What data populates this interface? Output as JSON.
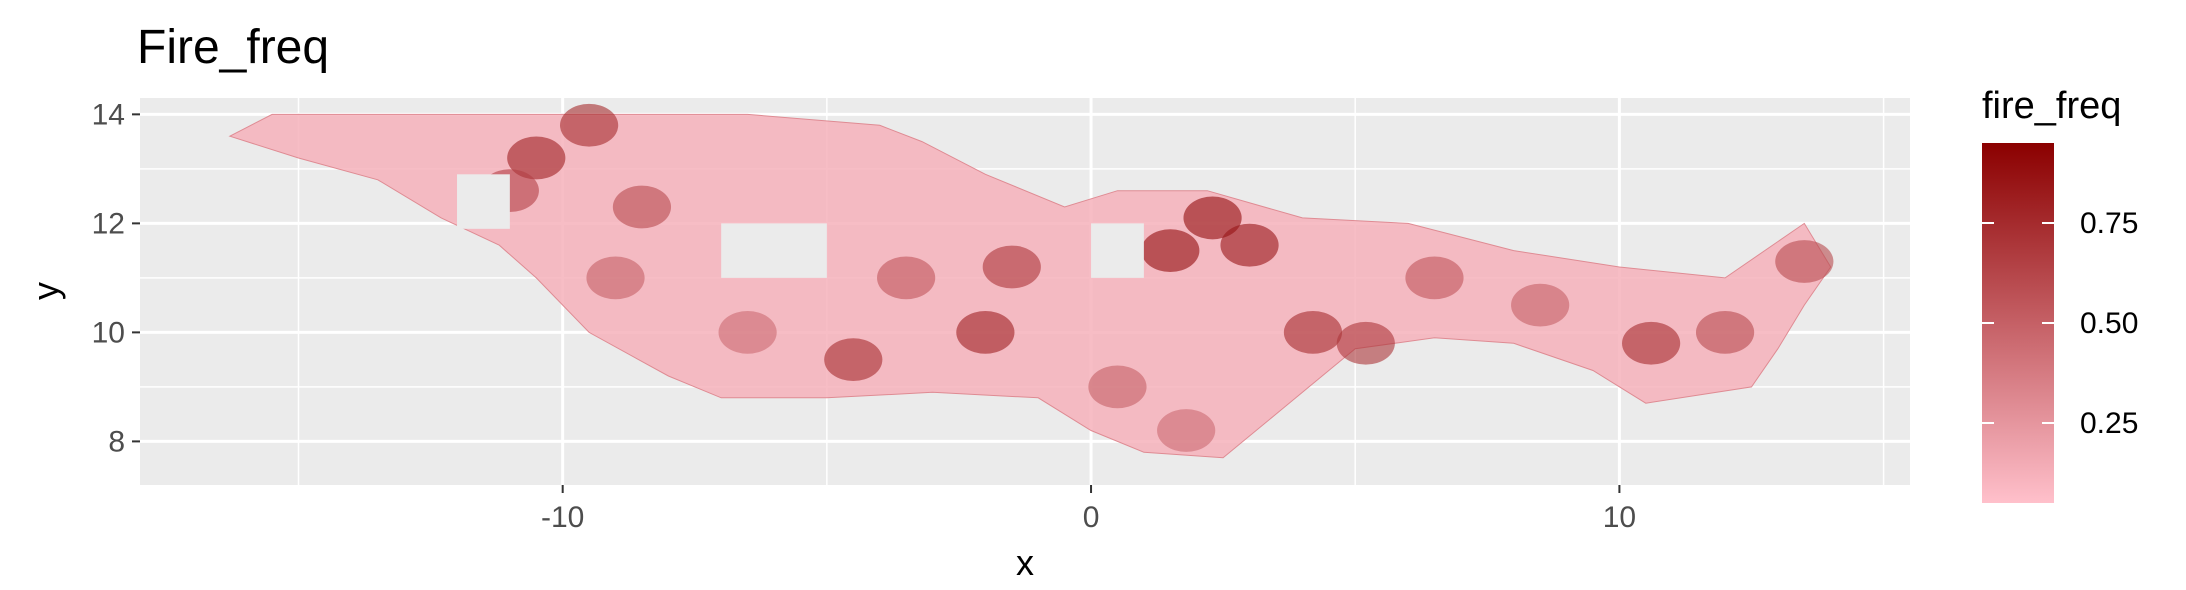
{
  "chart_data": {
    "type": "heatmap",
    "title": "Fire_freq",
    "xlabel": "x",
    "ylabel": "y",
    "xlim": [
      -18,
      15.5
    ],
    "ylim": [
      7.2,
      14.3
    ],
    "x_ticks": [
      -10,
      0,
      10
    ],
    "x_tick_labels": [
      "-10",
      "0",
      "10"
    ],
    "y_ticks": [
      8,
      10,
      12,
      14
    ],
    "y_tick_labels": [
      "8",
      "10",
      "12",
      "14"
    ],
    "grid": true,
    "panel_background": "#ebebeb",
    "legend": {
      "title": "fire_freq",
      "placement": "right",
      "range": [
        0.05,
        0.95
      ],
      "low_color": "#ffc0cb",
      "high_color": "#8b0000",
      "breaks": [
        0.25,
        0.5,
        0.75
      ],
      "break_labels": [
        "0.25",
        "0.50",
        "0.75"
      ]
    },
    "region_outline": [
      [
        -16.3,
        13.6
      ],
      [
        -15.5,
        14.0
      ],
      [
        -6.5,
        14.0
      ],
      [
        -4.0,
        13.8
      ],
      [
        -3.2,
        13.5
      ],
      [
        -2.0,
        12.9
      ],
      [
        -0.5,
        12.3
      ],
      [
        0.5,
        12.6
      ],
      [
        2.2,
        12.6
      ],
      [
        4.0,
        12.1
      ],
      [
        6.0,
        12.0
      ],
      [
        8.0,
        11.5
      ],
      [
        10.0,
        11.2
      ],
      [
        12.0,
        11.0
      ],
      [
        13.5,
        12.0
      ],
      [
        14.0,
        11.2
      ],
      [
        13.5,
        10.5
      ],
      [
        13.0,
        9.7
      ],
      [
        12.5,
        9.0
      ],
      [
        10.5,
        8.7
      ],
      [
        9.5,
        9.3
      ],
      [
        8.0,
        9.8
      ],
      [
        6.5,
        9.9
      ],
      [
        5.0,
        9.7
      ],
      [
        4.5,
        9.3
      ],
      [
        3.5,
        8.5
      ],
      [
        2.5,
        7.7
      ],
      [
        1.0,
        7.8
      ],
      [
        0.0,
        8.2
      ],
      [
        -1.0,
        8.8
      ],
      [
        -3.0,
        8.9
      ],
      [
        -5.0,
        8.8
      ],
      [
        -7.0,
        8.8
      ],
      [
        -8.0,
        9.2
      ],
      [
        -9.5,
        10.0
      ],
      [
        -10.5,
        11.0
      ],
      [
        -11.2,
        11.6
      ],
      [
        -12.3,
        12.1
      ],
      [
        -13.5,
        12.8
      ],
      [
        -15.0,
        13.2
      ]
    ],
    "hot_spots": [
      {
        "x": -10.5,
        "y": 13.2,
        "value": 0.8
      },
      {
        "x": -9.5,
        "y": 13.8,
        "value": 0.75
      },
      {
        "x": -11.0,
        "y": 12.6,
        "value": 0.65
      },
      {
        "x": -8.5,
        "y": 12.3,
        "value": 0.6
      },
      {
        "x": -9.0,
        "y": 11.0,
        "value": 0.5
      },
      {
        "x": -4.5,
        "y": 9.5,
        "value": 0.75
      },
      {
        "x": -2.0,
        "y": 10.0,
        "value": 0.8
      },
      {
        "x": -1.5,
        "y": 11.2,
        "value": 0.7
      },
      {
        "x": -3.5,
        "y": 11.0,
        "value": 0.55
      },
      {
        "x": 1.5,
        "y": 11.5,
        "value": 0.9
      },
      {
        "x": 2.3,
        "y": 12.1,
        "value": 0.9
      },
      {
        "x": 3.0,
        "y": 11.6,
        "value": 0.85
      },
      {
        "x": 4.2,
        "y": 10.0,
        "value": 0.75
      },
      {
        "x": 5.2,
        "y": 9.8,
        "value": 0.7
      },
      {
        "x": 6.5,
        "y": 11.0,
        "value": 0.55
      },
      {
        "x": 8.5,
        "y": 10.5,
        "value": 0.5
      },
      {
        "x": 10.6,
        "y": 9.8,
        "value": 0.75
      },
      {
        "x": 12.0,
        "y": 10.0,
        "value": 0.6
      },
      {
        "x": 13.5,
        "y": 11.3,
        "value": 0.6
      },
      {
        "x": 0.5,
        "y": 9.0,
        "value": 0.5
      },
      {
        "x": 1.8,
        "y": 8.2,
        "value": 0.45
      },
      {
        "x": -6.5,
        "y": 10.0,
        "value": 0.45
      }
    ],
    "empty_blocks": [
      {
        "x": [
          -12.0,
          -11.0
        ],
        "y": [
          11.9,
          12.9
        ]
      },
      {
        "x": [
          -7.0,
          -5.0
        ],
        "y": [
          11.0,
          12.0
        ]
      },
      {
        "x": [
          0.0,
          1.0
        ],
        "y": [
          11.0,
          12.0
        ]
      }
    ]
  }
}
